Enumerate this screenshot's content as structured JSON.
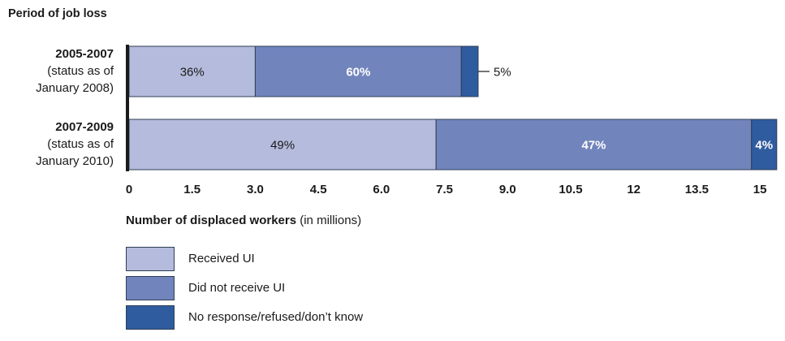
{
  "chart_data": {
    "type": "bar",
    "orientation": "horizontal",
    "stacked": true,
    "title": "Period of job loss",
    "xlabel_bold": "Number of displaced workers",
    "xlabel_rest": " (in millions)",
    "xlim": [
      0,
      15.5
    ],
    "xticks": [
      "0",
      "1.5",
      "3.0",
      "4.5",
      "6.0",
      "7.5",
      "9.0",
      "10.5",
      "12",
      "13.5",
      "15"
    ],
    "xtick_values": [
      0,
      1.5,
      3.0,
      4.5,
      6.0,
      7.5,
      9.0,
      10.5,
      12,
      13.5,
      15
    ],
    "categories": [
      {
        "line1": "2005-2007",
        "line2": "(status as of",
        "line3": "January 2008)"
      },
      {
        "line1": "2007-2009",
        "line2": "(status as of",
        "line3": "January 2010)"
      }
    ],
    "series": [
      {
        "name": "Received UI",
        "color": "#b4bbdc",
        "values": [
          3.0,
          7.3
        ],
        "labels": [
          "36%",
          "49%"
        ],
        "label_color": "#1a1a1a",
        "bold": false
      },
      {
        "name": "Did not receive UI",
        "color": "#7284bc",
        "values": [
          4.9,
          7.5
        ],
        "labels": [
          "60%",
          "47%"
        ],
        "label_color": "#ffffff",
        "bold": true
      },
      {
        "name": "No response/refused/don’t know",
        "color": "#2e5c9e",
        "values": [
          0.4,
          0.6
        ],
        "labels": [
          "5%",
          "4%"
        ],
        "label_color": "#ffffff",
        "bold": true
      }
    ],
    "legend_position": "bottom-left",
    "grid": false
  }
}
